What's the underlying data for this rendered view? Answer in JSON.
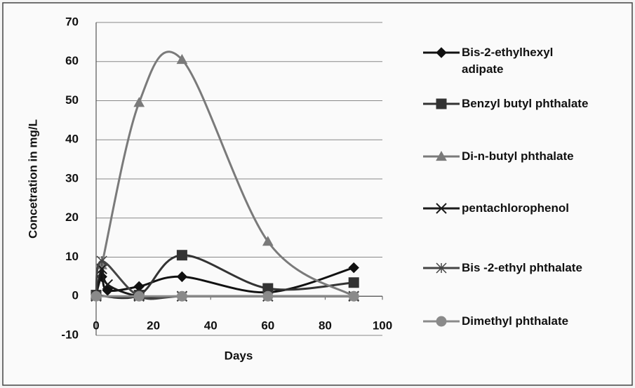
{
  "chart_data": {
    "type": "line",
    "xlabel": "Days",
    "ylabel": "Concetration in mg/L",
    "xlim": [
      0,
      100
    ],
    "xticks": [
      0,
      20,
      40,
      60,
      80,
      100
    ],
    "ylim": [
      -10,
      70
    ],
    "yticks": [
      -10,
      0,
      10,
      20,
      30,
      40,
      50,
      60,
      70
    ],
    "grid": true,
    "smooth": true,
    "legend": "right",
    "series": [
      {
        "name": "Bis-2-ethylhexyl adipate",
        "color": "#111111",
        "marker": "diamond",
        "x": [
          0,
          2,
          4,
          15,
          30,
          60,
          90
        ],
        "values": [
          0.5,
          5,
          1.5,
          2.5,
          5,
          1,
          7.3
        ]
      },
      {
        "name": "Benzyl butyl phthalate",
        "color": "#333333",
        "marker": "square",
        "x": [
          0,
          15,
          30,
          60,
          90
        ],
        "values": [
          0.3,
          0.3,
          10.5,
          2,
          3.5
        ]
      },
      {
        "name": "Di-n-butyl phthalate",
        "color": "#7a7a7a",
        "marker": "triangle",
        "x": [
          0,
          2,
          15,
          30,
          60,
          90
        ],
        "values": [
          0,
          8,
          49.5,
          60.5,
          14,
          0
        ]
      },
      {
        "name": "pentachlorophenol",
        "color": "#1a1a1a",
        "marker": "x",
        "x": [
          0,
          2,
          4,
          15,
          30,
          60,
          90
        ],
        "values": [
          0,
          7,
          3,
          0,
          0,
          0,
          0
        ]
      },
      {
        "name": "Bis -2-ethyl phthalate",
        "color": "#444444",
        "marker": "star",
        "x": [
          0,
          2,
          15,
          30,
          60,
          90
        ],
        "values": [
          0,
          9,
          0,
          0,
          0,
          0
        ]
      },
      {
        "name": "Dimethyl phthalate",
        "color": "#8a8a8a",
        "marker": "circle",
        "x": [
          0,
          15,
          30,
          60,
          90
        ],
        "values": [
          0,
          0,
          0,
          0,
          0
        ]
      }
    ]
  }
}
